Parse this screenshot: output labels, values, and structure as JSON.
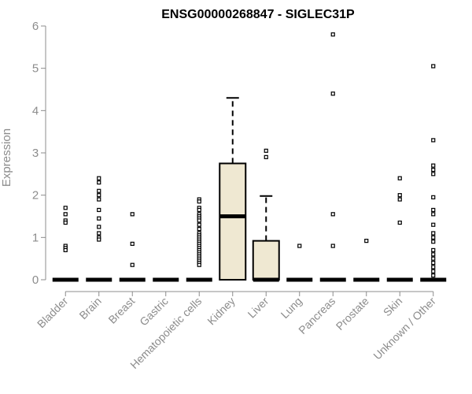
{
  "chart_data": {
    "type": "box",
    "title": "ENSG00000268847 - SIGLEC31P",
    "xlabel": "",
    "ylabel": "Expression",
    "ylim": [
      0,
      6
    ],
    "yticks": [
      0,
      1,
      2,
      3,
      4,
      5,
      6
    ],
    "box_fill": "#efe8d2",
    "categories": [
      "Bladder",
      "Brain",
      "Breast",
      "Gastric",
      "Hematopoietic cells",
      "Kidney",
      "Liver",
      "Lung",
      "Pancreas",
      "Prostate",
      "Skin",
      "Unknown / Other"
    ],
    "boxes": [
      {
        "category": "Bladder",
        "q1": 0,
        "median": 0,
        "q3": 0,
        "whisker_low": 0,
        "whisker_high": 0,
        "outliers": [
          1.7,
          1.55,
          1.4,
          1.35,
          0.8,
          0.75,
          0.7
        ]
      },
      {
        "category": "Brain",
        "q1": 0,
        "median": 0,
        "q3": 0,
        "whisker_low": 0,
        "whisker_high": 0,
        "outliers": [
          2.4,
          2.3,
          2.1,
          2.0,
          1.9,
          1.65,
          1.45,
          1.25,
          1.1,
          1.0,
          0.95
        ]
      },
      {
        "category": "Breast",
        "q1": 0,
        "median": 0,
        "q3": 0,
        "whisker_low": 0,
        "whisker_high": 0,
        "outliers": [
          1.55,
          0.85,
          0.35
        ]
      },
      {
        "category": "Gastric",
        "q1": 0,
        "median": 0,
        "q3": 0,
        "whisker_low": 0,
        "whisker_high": 0,
        "outliers": []
      },
      {
        "category": "Hematopoietic cells",
        "q1": 0,
        "median": 0,
        "q3": 0,
        "whisker_low": 0,
        "whisker_high": 0,
        "outliers": [
          1.9,
          1.85,
          1.7,
          1.65,
          1.55,
          1.5,
          1.45,
          1.4,
          1.3,
          1.2,
          1.1,
          1.05,
          1.0,
          0.95,
          0.9,
          0.85,
          0.8,
          0.75,
          0.7,
          0.65,
          0.6,
          0.55,
          0.5,
          0.45,
          0.4,
          0.35
        ]
      },
      {
        "category": "Kidney",
        "q1": 0,
        "median": 1.5,
        "q3": 2.75,
        "whisker_low": 0,
        "whisker_high": 4.3,
        "outliers": []
      },
      {
        "category": "Liver",
        "q1": 0,
        "median": 0,
        "q3": 0.92,
        "whisker_low": 0,
        "whisker_high": 1.98,
        "outliers": [
          3.05,
          2.9
        ]
      },
      {
        "category": "Lung",
        "q1": 0,
        "median": 0,
        "q3": 0,
        "whisker_low": 0,
        "whisker_high": 0,
        "outliers": [
          0.8
        ]
      },
      {
        "category": "Pancreas",
        "q1": 0,
        "median": 0,
        "q3": 0,
        "whisker_low": 0,
        "whisker_high": 0,
        "outliers": [
          5.8,
          4.4,
          1.55,
          0.8
        ]
      },
      {
        "category": "Prostate",
        "q1": 0,
        "median": 0,
        "q3": 0,
        "whisker_low": 0,
        "whisker_high": 0,
        "outliers": [
          0.92
        ]
      },
      {
        "category": "Skin",
        "q1": 0,
        "median": 0,
        "q3": 0,
        "whisker_low": 0,
        "whisker_high": 0,
        "outliers": [
          2.4,
          2.0,
          1.9,
          1.35
        ]
      },
      {
        "category": "Unknown / Other",
        "q1": 0,
        "median": 0,
        "q3": 0,
        "whisker_low": 0,
        "whisker_high": 0,
        "outliers": [
          5.05,
          3.3,
          2.7,
          2.6,
          2.5,
          1.95,
          1.65,
          1.55,
          1.3,
          1.1,
          1.0,
          0.9,
          0.7,
          0.6,
          0.5,
          0.4,
          0.3,
          0.2,
          0.1
        ]
      }
    ]
  }
}
